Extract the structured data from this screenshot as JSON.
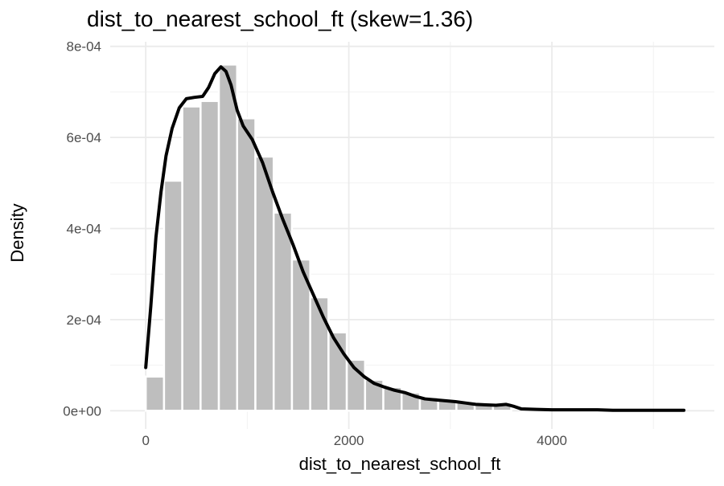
{
  "chart_data": {
    "type": "bar",
    "title": "dist_to_nearest_school_ft (skew=1.36)",
    "xlabel": "dist_to_nearest_school_ft",
    "ylabel": "Density",
    "xlim": [
      -350,
      5600
    ],
    "ylim": [
      -4e-05,
      0.00081
    ],
    "x_ticks": [
      0,
      2000,
      4000
    ],
    "x_tick_labels": [
      "0",
      "2000",
      "4000"
    ],
    "x_minor_ticks": [
      1000,
      3000,
      5000
    ],
    "y_ticks": [
      0,
      0.0002,
      0.0004,
      0.0006,
      0.0008
    ],
    "y_tick_labels": [
      "0e+00",
      "2e-04",
      "4e-04",
      "6e-04",
      "8e-04"
    ],
    "y_minor_ticks": [
      0.0001,
      0.0003,
      0.0005,
      0.0007
    ],
    "grid": true,
    "legend": "none",
    "histogram": {
      "bin_width": 180,
      "fill_color": "#bebebe",
      "edge_color": "#ffffff",
      "bins": [
        {
          "x0": 0,
          "x1": 180,
          "density": 7.5e-05
        },
        {
          "x0": 180,
          "x1": 360,
          "density": 0.000505
        },
        {
          "x0": 360,
          "x1": 540,
          "density": 0.000668
        },
        {
          "x0": 540,
          "x1": 720,
          "density": 0.00068
        },
        {
          "x0": 720,
          "x1": 900,
          "density": 0.00076
        },
        {
          "x0": 900,
          "x1": 1080,
          "density": 0.000642
        },
        {
          "x0": 1080,
          "x1": 1260,
          "density": 0.000558
        },
        {
          "x0": 1260,
          "x1": 1440,
          "density": 0.000435
        },
        {
          "x0": 1440,
          "x1": 1620,
          "density": 0.000332
        },
        {
          "x0": 1620,
          "x1": 1800,
          "density": 0.000249
        },
        {
          "x0": 1800,
          "x1": 1980,
          "density": 0.000172
        },
        {
          "x0": 1980,
          "x1": 2160,
          "density": 0.000112
        },
        {
          "x0": 2160,
          "x1": 2340,
          "density": 6.8e-05
        },
        {
          "x0": 2340,
          "x1": 2520,
          "density": 5.2e-05
        },
        {
          "x0": 2520,
          "x1": 2700,
          "density": 4e-05
        },
        {
          "x0": 2700,
          "x1": 2880,
          "density": 3e-05
        },
        {
          "x0": 2880,
          "x1": 3060,
          "density": 2.4e-05
        },
        {
          "x0": 3060,
          "x1": 3240,
          "density": 2e-05
        },
        {
          "x0": 3240,
          "x1": 3420,
          "density": 1.7e-05
        },
        {
          "x0": 3420,
          "x1": 3600,
          "density": 1.4e-05
        }
      ]
    },
    "density_line": {
      "color": "#000000",
      "points": [
        [
          0,
          9.5e-05
        ],
        [
          50,
          0.00023
        ],
        [
          100,
          0.00038
        ],
        [
          150,
          0.00048
        ],
        [
          200,
          0.00056
        ],
        [
          260,
          0.00062
        ],
        [
          330,
          0.000665
        ],
        [
          400,
          0.000685
        ],
        [
          480,
          0.000688
        ],
        [
          560,
          0.00069
        ],
        [
          620,
          0.00071
        ],
        [
          680,
          0.00074
        ],
        [
          740,
          0.000755
        ],
        [
          790,
          0.000745
        ],
        [
          840,
          0.000715
        ],
        [
          900,
          0.00066
        ],
        [
          960,
          0.000625
        ],
        [
          1050,
          0.000595
        ],
        [
          1150,
          0.000545
        ],
        [
          1250,
          0.00048
        ],
        [
          1350,
          0.00042
        ],
        [
          1450,
          0.000365
        ],
        [
          1550,
          0.000305
        ],
        [
          1650,
          0.000255
        ],
        [
          1750,
          0.000205
        ],
        [
          1850,
          0.00016
        ],
        [
          1950,
          0.000125
        ],
        [
          2050,
          9.5e-05
        ],
        [
          2150,
          7.5e-05
        ],
        [
          2250,
          6e-05
        ],
        [
          2350,
          5.2e-05
        ],
        [
          2450,
          4.5e-05
        ],
        [
          2550,
          4e-05
        ],
        [
          2650,
          3.2e-05
        ],
        [
          2750,
          2.6e-05
        ],
        [
          2850,
          2.4e-05
        ],
        [
          2950,
          2.2e-05
        ],
        [
          3050,
          2e-05
        ],
        [
          3150,
          1.7e-05
        ],
        [
          3250,
          1.4e-05
        ],
        [
          3350,
          1.3e-05
        ],
        [
          3450,
          1.2e-05
        ],
        [
          3550,
          1.4e-05
        ],
        [
          3620,
          1e-05
        ],
        [
          3700,
          4e-06
        ],
        [
          3850,
          3e-06
        ],
        [
          4000,
          2e-06
        ],
        [
          4150,
          2e-06
        ],
        [
          4300,
          2e-06
        ],
        [
          4450,
          2e-06
        ],
        [
          4600,
          1e-06
        ],
        [
          4800,
          1e-06
        ],
        [
          5000,
          1e-06
        ],
        [
          5300,
          1e-06
        ]
      ]
    }
  }
}
